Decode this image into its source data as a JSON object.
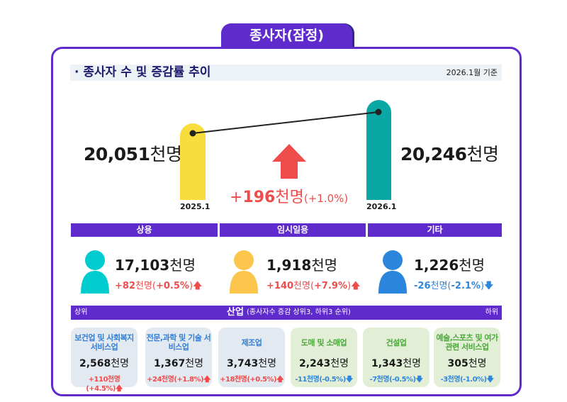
{
  "header": {
    "tab_title": "종사자(잠정)",
    "section_title": "· 종사자 수 및 증감률 추이",
    "basis_date": "2026.1월 기준"
  },
  "trend": {
    "prev": {
      "value": "20,051",
      "unit": "천명",
      "label": "2025.1"
    },
    "curr": {
      "value": "20,246",
      "unit": "천명",
      "label": "2026.1"
    },
    "change": {
      "sign": "+",
      "value": "196",
      "unit": "천명",
      "pct": "(+1.0%)"
    },
    "colors": {
      "prev_bar": "#f9dd3c",
      "curr_bar": "#0aa7a5",
      "up": "#ef4c4c"
    }
  },
  "categories": [
    {
      "title": "상용",
      "value": "17,103",
      "unit": "천명",
      "change": "+82",
      "change_unit": "천명(",
      "pct": "+0.5%",
      ")": ")",
      "direction": "up",
      "icon_color": "#00ccd0"
    },
    {
      "title": "임시일용",
      "value": "1,918",
      "unit": "천명",
      "change": "+140",
      "change_unit": "천명(",
      "pct": "+7.9%",
      "direction": "up",
      "icon_color": "#fcc64c"
    },
    {
      "title": "기타",
      "value": "1,226",
      "unit": "천명",
      "change": "-26",
      "change_unit": "천명(",
      "pct": "-2.1%",
      "direction": "down",
      "icon_color": "#2a86dc"
    }
  ],
  "industry": {
    "left_label": "상위",
    "title": "산업",
    "subtitle": "(종사자수 증감 상위3, 하위3 순위)",
    "right_label": "하위",
    "cards": [
      {
        "name": "보건업 및 사회복지 서비스업",
        "value": "2,568",
        "unit": "천명",
        "change": "+110천명(+4.5%)",
        "direction": "up"
      },
      {
        "name": "전문,과학 및 기술 서비스업",
        "value": "1,367",
        "unit": "천명",
        "change": "+24천명(+1.8%)",
        "direction": "up"
      },
      {
        "name": "제조업",
        "value": "3,743",
        "unit": "천명",
        "change": "+18천명(+0.5%)",
        "direction": "up"
      },
      {
        "name": "도매 및 소매업",
        "value": "2,243",
        "unit": "천명",
        "change": "-11천명(-0.5%)",
        "direction": "down"
      },
      {
        "name": "건설업",
        "value": "1,343",
        "unit": "천명",
        "change": "-7천명(-0.5%)",
        "direction": "down"
      },
      {
        "name": "예술,스포츠 및 여가관련 서비스업",
        "value": "305",
        "unit": "천명",
        "change": "-3천명(-1.0%)",
        "direction": "down"
      }
    ]
  }
}
